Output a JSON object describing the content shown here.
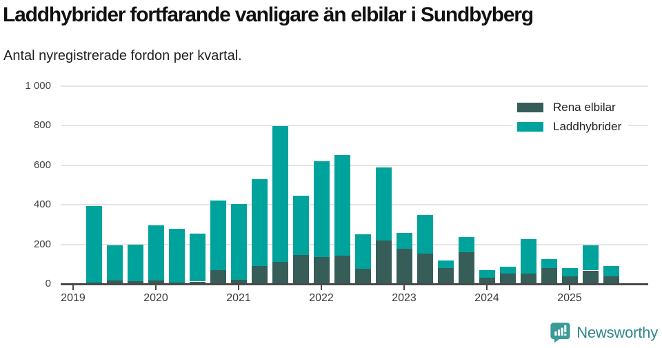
{
  "header": {
    "title": "Laddhybrider fortfarande vanligare än elbilar i Sundbyberg",
    "subtitle": "Antal nyregistrerade fordon per kvartal."
  },
  "chart_data": {
    "type": "bar",
    "stacked": true,
    "title": "Laddhybrider fortfarande vanligare än elbilar i Sundbyberg",
    "subtitle": "Antal nyregistrerade fordon per kvartal.",
    "categories": [
      "2019 Q2",
      "2019 Q3",
      "2019 Q4",
      "2020 Q1",
      "2020 Q2",
      "2020 Q3",
      "2020 Q4",
      "2021 Q1",
      "2021 Q2",
      "2021 Q3",
      "2021 Q4",
      "2022 Q1",
      "2022 Q2",
      "2022 Q3",
      "2022 Q4",
      "2023 Q1",
      "2023 Q2",
      "2023 Q3",
      "2023 Q4",
      "2024 Q1",
      "2024 Q2",
      "2024 Q3",
      "2024 Q4",
      "2025 Q1",
      "2025 Q2",
      "2025 Q3"
    ],
    "series": [
      {
        "name": "Rena elbilar",
        "color": "#365d58",
        "values": [
          8,
          18,
          15,
          18,
          8,
          12,
          70,
          20,
          90,
          112,
          145,
          135,
          143,
          77,
          220,
          178,
          152,
          79,
          160,
          32,
          51,
          52,
          79,
          38,
          68,
          38
        ]
      },
      {
        "name": "Laddhybrider",
        "color": "#00a39c",
        "values": [
          387,
          177,
          185,
          280,
          272,
          243,
          352,
          385,
          440,
          685,
          302,
          486,
          509,
          175,
          370,
          81,
          195,
          41,
          76,
          39,
          37,
          175,
          47,
          41,
          128,
          54
        ]
      }
    ],
    "xticks": [
      "2019",
      "2020",
      "2021",
      "2022",
      "2023",
      "2024",
      "2025"
    ],
    "yticks": [
      {
        "value": 0,
        "label": "0"
      },
      {
        "value": 200,
        "label": "200"
      },
      {
        "value": 400,
        "label": "400"
      },
      {
        "value": 600,
        "label": "600"
      },
      {
        "value": 800,
        "label": "800"
      },
      {
        "value": 1000,
        "label": "1 000"
      }
    ],
    "ylim": [
      0,
      1000
    ],
    "grid": true,
    "legend_position": "top-right"
  },
  "footer": {
    "brand": "Newsworthy",
    "brand_color": "#2f8689",
    "icon": "newsworthy-bar-chart-bubble-icon",
    "icon_color": "#3b9b97"
  }
}
